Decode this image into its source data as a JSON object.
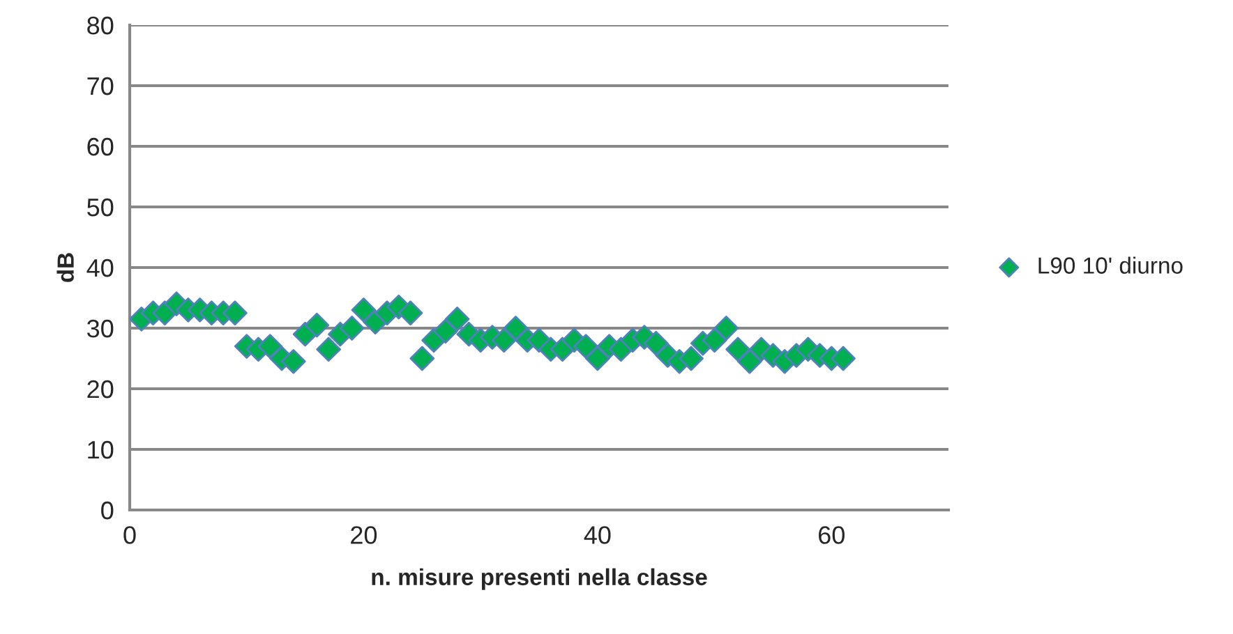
{
  "chart_data": {
    "type": "scatter",
    "xlabel": "n. misure presenti nella classe",
    "ylabel": "dB",
    "x": [
      1,
      2,
      3,
      4,
      5,
      6,
      7,
      8,
      9,
      10,
      11,
      12,
      13,
      14,
      15,
      16,
      17,
      18,
      19,
      20,
      21,
      22,
      23,
      24,
      25,
      26,
      27,
      28,
      29,
      30,
      31,
      32,
      33,
      34,
      35,
      36,
      37,
      38,
      39,
      40,
      41,
      42,
      43,
      44,
      45,
      46,
      47,
      48,
      49,
      50,
      51,
      52,
      53,
      54,
      55,
      56,
      57,
      58,
      59,
      60,
      61
    ],
    "series": [
      {
        "name": "L90 10' diurno",
        "color": "#00b050",
        "values": [
          31.5,
          32.5,
          32.5,
          34,
          33,
          33,
          32.5,
          32.5,
          32.5,
          27,
          26.5,
          27,
          25,
          24.5,
          29,
          30.5,
          26.5,
          29,
          30,
          33,
          31,
          32.5,
          33.5,
          32.5,
          25,
          28,
          29.5,
          31.5,
          29,
          28,
          28.5,
          28,
          30,
          28,
          28,
          26.5,
          26.5,
          28,
          27,
          25,
          27,
          26.5,
          28,
          28.5,
          27.5,
          25.5,
          24.5,
          25,
          27.5,
          28,
          30,
          26.5,
          24.5,
          26.5,
          25.5,
          24.5,
          25.5,
          26.5,
          25.5,
          25,
          25
        ]
      }
    ],
    "xlim": [
      0,
      70
    ],
    "xticks": [
      0,
      20,
      40,
      60
    ],
    "ylim": [
      0,
      80
    ],
    "yticks": [
      0,
      10,
      20,
      30,
      40,
      50,
      60,
      70,
      80
    ],
    "marker": "diamond",
    "grid": "y",
    "legend": "right"
  }
}
